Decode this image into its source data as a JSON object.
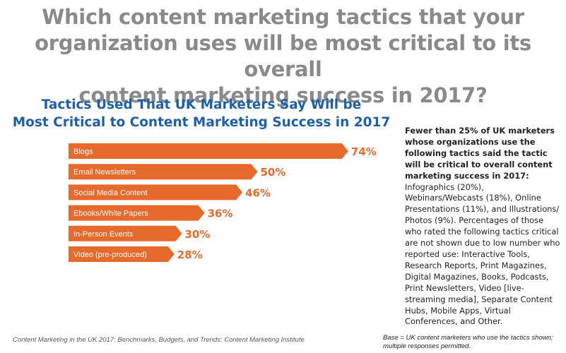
{
  "question": {
    "line1": "Which content marketing tactics that your",
    "line2": "organization uses will be most critical to its overall",
    "line3": "content marketing success in 2017?"
  },
  "chart_data": {
    "type": "bar",
    "orientation": "horizontal",
    "title_line1": "Tactics Used That UK Marketers Say Will be",
    "title_line2": "Most Critical to Content Marketing Success in 2017",
    "categories": [
      "Blogs",
      "Email Newsletters",
      "Social Media Content",
      "Ebooks/White Papers",
      "In-Person Events",
      "Video (pre-produced)"
    ],
    "values": [
      74,
      50,
      46,
      36,
      30,
      28
    ],
    "value_labels": [
      "74%",
      "50%",
      "46%",
      "36%",
      "30%",
      "28%"
    ],
    "unit": "%",
    "xlim": [
      0,
      100
    ],
    "grid": false,
    "legend": "none",
    "bar_color": "#e8692c",
    "value_label_color": "#e8692c",
    "title_color": "#1f5fa8"
  },
  "side_note": {
    "bold": "Fewer than 25% of UK marketers whose organizations use the following tactics said the tactic will be critical to overall content marketing success in 2017:",
    "text": " Infographics (20%), Webinars/Webcasts (18%), Online Presentations (11%), and Illustrations/ Photos (9%). Percentages of those who rated the following tactics critical are not shown due to low number who reported use: Interactive Tools, Research Reports, Print Magazines, Digital Magazines, Books, Podcasts, Print Newsletters, Video [live-streaming media], Separate Content Hubs, Mobile Apps, Virtual Conferences, and Other."
  },
  "footer": {
    "source": "Content Marketing in the UK 2017: Benchmarks, Budgets, and Trends: Content Marketing Institute",
    "base": "Base = UK content marketers who use the tactics shown; multiple responses permitted."
  }
}
